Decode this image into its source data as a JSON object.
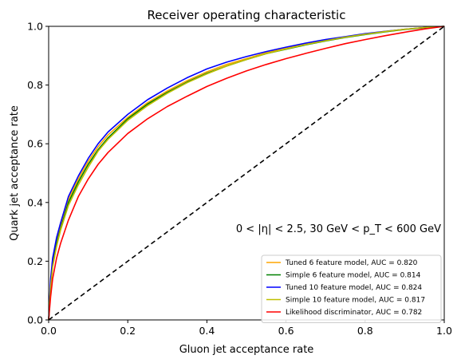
{
  "chart_data": {
    "type": "line",
    "title": "Receiver operating characteristic",
    "xlabel": "Gluon jet acceptance rate",
    "ylabel": "Quark jet acceptance rate",
    "xlim": [
      0.0,
      1.0
    ],
    "ylim": [
      0.0,
      1.0
    ],
    "xticks": [
      "0.0",
      "0.2",
      "0.4",
      "0.6",
      "0.8",
      "1.0"
    ],
    "yticks": [
      "0.0",
      "0.2",
      "0.4",
      "0.6",
      "0.8",
      "1.0"
    ],
    "grid": false,
    "legend_position": "lower-right",
    "annotation": "0 < |η| < 2.5,  30 GeV < p_T < 600 GeV",
    "x": [
      0.0,
      0.005,
      0.01,
      0.02,
      0.03,
      0.05,
      0.075,
      0.1,
      0.125,
      0.15,
      0.2,
      0.25,
      0.3,
      0.35,
      0.4,
      0.45,
      0.5,
      0.55,
      0.6,
      0.65,
      0.7,
      0.75,
      0.8,
      0.85,
      0.9,
      0.95,
      1.0
    ],
    "series": [
      {
        "name": "Tuned 6 feature model, AUC = 0.820",
        "color": "#ffa500",
        "dashed": false,
        "values": [
          0.0,
          0.13,
          0.2,
          0.27,
          0.32,
          0.41,
          0.48,
          0.54,
          0.59,
          0.63,
          0.69,
          0.74,
          0.78,
          0.815,
          0.845,
          0.87,
          0.89,
          0.91,
          0.925,
          0.94,
          0.952,
          0.963,
          0.973,
          0.982,
          0.99,
          0.996,
          1.0
        ]
      },
      {
        "name": "Simple 6 feature model, AUC = 0.814",
        "color": "#008000",
        "dashed": false,
        "values": [
          0.0,
          0.12,
          0.19,
          0.26,
          0.31,
          0.4,
          0.47,
          0.53,
          0.58,
          0.62,
          0.685,
          0.735,
          0.775,
          0.81,
          0.84,
          0.865,
          0.887,
          0.907,
          0.922,
          0.937,
          0.95,
          0.962,
          0.972,
          0.981,
          0.989,
          0.995,
          1.0
        ]
      },
      {
        "name": "Tuned 10 feature model, AUC = 0.824",
        "color": "#0000ff",
        "dashed": false,
        "values": [
          0.0,
          0.14,
          0.21,
          0.28,
          0.33,
          0.42,
          0.49,
          0.55,
          0.6,
          0.64,
          0.7,
          0.75,
          0.79,
          0.825,
          0.855,
          0.878,
          0.897,
          0.914,
          0.929,
          0.943,
          0.955,
          0.965,
          0.975,
          0.983,
          0.99,
          0.996,
          1.0
        ]
      },
      {
        "name": "Simple 10 feature model, AUC = 0.817",
        "color": "#bfbf00",
        "dashed": false,
        "values": [
          0.0,
          0.11,
          0.18,
          0.25,
          0.305,
          0.39,
          0.46,
          0.52,
          0.575,
          0.615,
          0.68,
          0.73,
          0.772,
          0.808,
          0.838,
          0.865,
          0.887,
          0.907,
          0.923,
          0.938,
          0.951,
          0.963,
          0.973,
          0.982,
          0.99,
          0.996,
          1.0
        ]
      },
      {
        "name": "Likelihood discriminator, AUC = 0.782",
        "color": "#ff0000",
        "dashed": false,
        "values": [
          0.0,
          0.08,
          0.14,
          0.21,
          0.26,
          0.34,
          0.42,
          0.48,
          0.53,
          0.57,
          0.635,
          0.685,
          0.727,
          0.762,
          0.795,
          0.823,
          0.848,
          0.87,
          0.89,
          0.908,
          0.925,
          0.941,
          0.955,
          0.968,
          0.98,
          0.991,
          1.0
        ]
      },
      {
        "name": "",
        "color": "#000000",
        "dashed": true,
        "values": [
          0.0,
          0.005,
          0.01,
          0.02,
          0.03,
          0.05,
          0.075,
          0.1,
          0.125,
          0.15,
          0.2,
          0.25,
          0.3,
          0.35,
          0.4,
          0.45,
          0.5,
          0.55,
          0.6,
          0.65,
          0.7,
          0.75,
          0.8,
          0.85,
          0.9,
          0.95,
          1.0
        ]
      }
    ]
  }
}
